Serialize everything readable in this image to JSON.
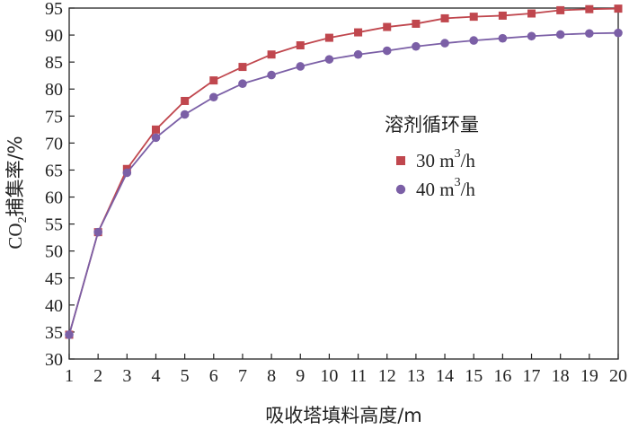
{
  "chart_data": {
    "type": "line",
    "xlabel": "吸收塔填料高度/m",
    "ylabel_main": "CO",
    "ylabel_sub": "2",
    "ylabel_rest": "捕集率/%",
    "xlim": [
      1,
      20
    ],
    "ylim": [
      30,
      95
    ],
    "x_ticks": [
      1,
      2,
      3,
      4,
      5,
      6,
      7,
      8,
      9,
      10,
      11,
      12,
      13,
      14,
      15,
      16,
      17,
      18,
      19,
      20
    ],
    "y_ticks": [
      30,
      35,
      40,
      45,
      50,
      55,
      60,
      65,
      70,
      75,
      80,
      85,
      90,
      95
    ],
    "grid": false,
    "legend": {
      "title": "溶剂循环量",
      "placement": "center-right"
    },
    "x": [
      1,
      2,
      3,
      4,
      5,
      6,
      7,
      8,
      9,
      10,
      11,
      12,
      13,
      14,
      15,
      16,
      17,
      18,
      19,
      20
    ],
    "series": [
      {
        "name_num": "30 m",
        "name_sup": "3",
        "name_unit": "/h",
        "marker": "square",
        "color": "#c0474e",
        "values": [
          34.5,
          53.5,
          65.2,
          72.5,
          77.8,
          81.6,
          84.1,
          86.4,
          88.1,
          89.5,
          90.5,
          91.5,
          92.1,
          93.1,
          93.4,
          93.6,
          94.0,
          94.6,
          94.8,
          94.9
        ]
      },
      {
        "name_num": "40 m",
        "name_sup": "3",
        "name_unit": "/h",
        "marker": "circle",
        "color": "#7b5fa6",
        "values": [
          34.5,
          53.5,
          64.5,
          71.0,
          75.3,
          78.5,
          81.0,
          82.6,
          84.2,
          85.5,
          86.4,
          87.1,
          87.9,
          88.5,
          89.0,
          89.4,
          89.8,
          90.1,
          90.3,
          90.4
        ]
      }
    ]
  }
}
